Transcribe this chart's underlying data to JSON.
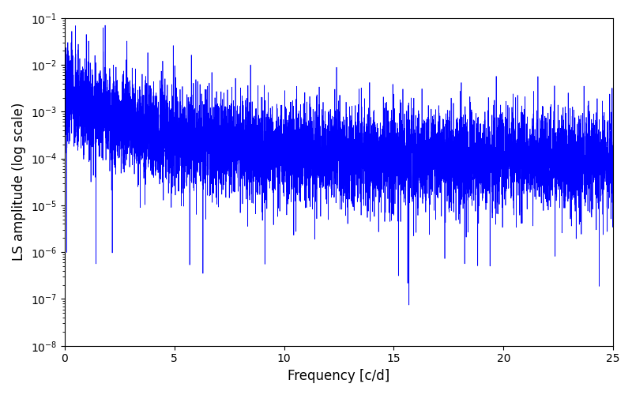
{
  "xlabel": "Frequency [c/d]",
  "ylabel": "LS amplitude (log scale)",
  "xmin": 0,
  "xmax": 25,
  "ymin": 1e-08,
  "ymax": 0.1,
  "line_color": "#0000ff",
  "line_width": 0.5,
  "figsize": [
    8.0,
    5.0
  ],
  "dpi": 100,
  "seed": 7,
  "n_points": 8000,
  "background_color": "#ffffff"
}
